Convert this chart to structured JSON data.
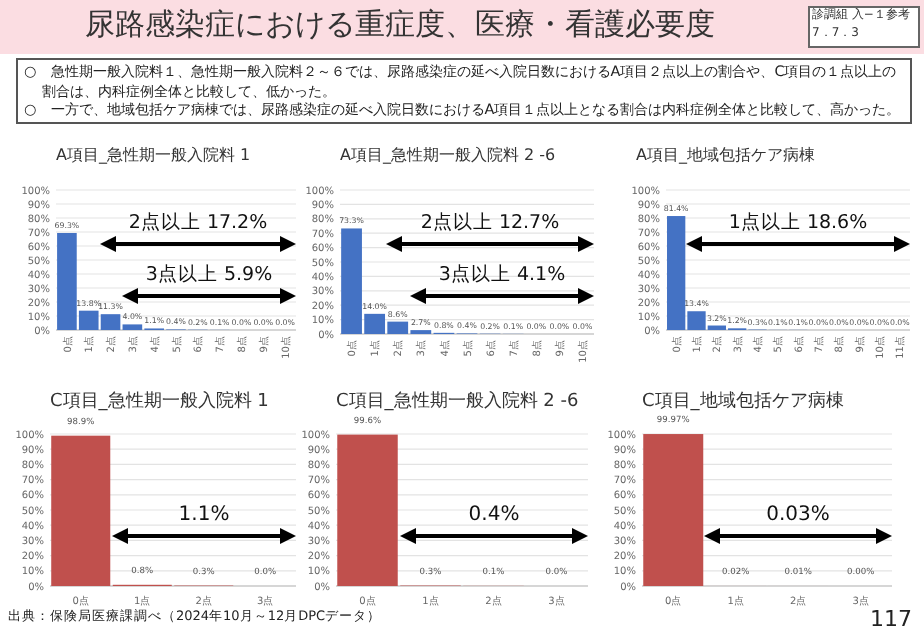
{
  "chart_data": [
    {
      "type": "other",
      "title": "尿路感染症における重症度、医療・看護必要度",
      "annotations": [
        "○　急性期一般入院料１、急性期一般入院料２～６では、尿路感染症の延べ入院日数におけるA項目２点以上の割合や、C項目の１点以上の割合は、内科症例全体と比較して、低かった。",
        "○　一方で、地域包括ケア病棟では、尿路感染症の延べ入院日数におけるA項目１点以上となる割合は内科症例全体と比較して、高かった。",
        "診調組 入−１参考 7．7．3",
        "出典：保険局医療課調べ（2024年10月～12月DPCデータ）",
        "117"
      ]
    },
    {
      "type": "bar",
      "title": "A項目_急性期一般入院料 1",
      "categories": [
        "0点",
        "1点",
        "2点",
        "3点",
        "4点",
        "5点",
        "6点",
        "7点",
        "8点",
        "9点",
        "10点"
      ],
      "values": [
        69.3,
        13.8,
        11.3,
        4.0,
        1.1,
        0.4,
        0.2,
        0.1,
        0.0,
        0.0,
        0.0
      ],
      "color": "#4472c4",
      "value_labels": [
        "69.3%",
        "13.8%",
        "11.3%",
        "4.0%",
        "1.1%",
        "0.4%",
        "0.2%",
        "0.1%",
        "0.0%",
        "0.0%",
        "0.0%"
      ],
      "ylim": [
        0,
        100
      ],
      "yticks": [
        {
          "value": 0,
          "label": "0%"
        },
        {
          "value": 10,
          "label": "10%"
        },
        {
          "value": 20,
          "label": "20%"
        },
        {
          "value": 30,
          "label": "30%"
        },
        {
          "value": 40,
          "label": "40%"
        },
        {
          "value": 50,
          "label": "50%"
        },
        {
          "value": 60,
          "label": "60%"
        },
        {
          "value": 70,
          "label": "70%"
        },
        {
          "value": 80,
          "label": "80%"
        },
        {
          "value": 90,
          "label": "90%"
        },
        {
          "value": 100,
          "label": "100%"
        }
      ],
      "grid": "y",
      "annotations": [
        "2点以上 17.2%",
        "3点以上 5.9%"
      ]
    },
    {
      "type": "bar",
      "title": "A項目_急性期一般入院料 2 -6",
      "categories": [
        "0点",
        "1点",
        "2点",
        "3点",
        "4点",
        "5点",
        "6点",
        "7点",
        "8点",
        "9点",
        "10点"
      ],
      "values": [
        73.3,
        14.0,
        8.6,
        2.7,
        0.8,
        0.4,
        0.2,
        0.1,
        0.0,
        0.0,
        0.0
      ],
      "color": "#4472c4",
      "value_labels": [
        "73.3%",
        "14.0%",
        "8.6%",
        "2.7%",
        "0.8%",
        "0.4%",
        "0.2%",
        "0.1%",
        "0.0%",
        "0.0%",
        "0.0%"
      ],
      "ylim": [
        0,
        100
      ],
      "yticks": [
        {
          "value": 0,
          "label": "0%"
        },
        {
          "value": 10,
          "label": "10%"
        },
        {
          "value": 20,
          "label": "20%"
        },
        {
          "value": 30,
          "label": "30%"
        },
        {
          "value": 40,
          "label": "40%"
        },
        {
          "value": 50,
          "label": "50%"
        },
        {
          "value": 60,
          "label": "60%"
        },
        {
          "value": 70,
          "label": "70%"
        },
        {
          "value": 80,
          "label": "80%"
        },
        {
          "value": 90,
          "label": "90%"
        },
        {
          "value": 100,
          "label": "100%"
        }
      ],
      "grid": "y",
      "annotations": [
        "2点以上 12.7%",
        "3点以上 4.1%"
      ]
    },
    {
      "type": "bar",
      "title": "A項目_地域包括ケア病棟",
      "categories": [
        "0点",
        "1点",
        "2点",
        "3点",
        "4点",
        "5点",
        "6点",
        "7点",
        "8点",
        "9点",
        "10点",
        "11点"
      ],
      "values": [
        81.4,
        13.4,
        3.2,
        1.2,
        0.3,
        0.1,
        0.1,
        0.0,
        0.0,
        0.0,
        0.0,
        0.0
      ],
      "color": "#4472c4",
      "value_labels": [
        "81.4%",
        "13.4%",
        "3.2%",
        "1.2%",
        "0.3%",
        "0.1%",
        "0.1%",
        "0.0%",
        "0.0%",
        "0.0%",
        "0.0%",
        "0.0%"
      ],
      "ylim": [
        0,
        100
      ],
      "yticks": [
        {
          "value": 0,
          "label": "0%"
        },
        {
          "value": 10,
          "label": "10%"
        },
        {
          "value": 20,
          "label": "20%"
        },
        {
          "value": 30,
          "label": "30%"
        },
        {
          "value": 40,
          "label": "40%"
        },
        {
          "value": 50,
          "label": "50%"
        },
        {
          "value": 60,
          "label": "60%"
        },
        {
          "value": 70,
          "label": "70%"
        },
        {
          "value": 80,
          "label": "80%"
        },
        {
          "value": 90,
          "label": "90%"
        },
        {
          "value": 100,
          "label": "100%"
        }
      ],
      "grid": "y",
      "annotations": [
        "1点以上 18.6%"
      ]
    },
    {
      "type": "bar",
      "title": "C項目_急性期一般入院料 1",
      "categories": [
        "0点",
        "1点",
        "2点",
        "3点"
      ],
      "values": [
        98.9,
        0.8,
        0.3,
        0.0
      ],
      "color": "#c0504d",
      "value_labels": [
        "98.9%",
        "0.8%",
        "0.3%",
        "0.0%"
      ],
      "ylim": [
        0,
        100
      ],
      "yticks": [
        {
          "value": 0,
          "label": "0%"
        },
        {
          "value": 10,
          "label": "10%"
        },
        {
          "value": 20,
          "label": "20%"
        },
        {
          "value": 30,
          "label": "30%"
        },
        {
          "value": 40,
          "label": "40%"
        },
        {
          "value": 50,
          "label": "50%"
        },
        {
          "value": 60,
          "label": "60%"
        },
        {
          "value": 70,
          "label": "70%"
        },
        {
          "value": 80,
          "label": "80%"
        },
        {
          "value": 90,
          "label": "90%"
        },
        {
          "value": 100,
          "label": "100%"
        }
      ],
      "grid": "y",
      "annotations": [
        "1.1%"
      ]
    },
    {
      "type": "bar",
      "title": "C項目_急性期一般入院料 2 -6",
      "categories": [
        "0点",
        "1点",
        "2点",
        "3点"
      ],
      "values": [
        99.6,
        0.3,
        0.1,
        0.0
      ],
      "color": "#c0504d",
      "value_labels": [
        "99.6%",
        "0.3%",
        "0.1%",
        "0.0%"
      ],
      "ylim": [
        0,
        100
      ],
      "yticks": [
        {
          "value": 0,
          "label": "0%"
        },
        {
          "value": 10,
          "label": "10%"
        },
        {
          "value": 20,
          "label": "20%"
        },
        {
          "value": 30,
          "label": "30%"
        },
        {
          "value": 40,
          "label": "40%"
        },
        {
          "value": 50,
          "label": "50%"
        },
        {
          "value": 60,
          "label": "60%"
        },
        {
          "value": 70,
          "label": "70%"
        },
        {
          "value": 80,
          "label": "80%"
        },
        {
          "value": 90,
          "label": "90%"
        },
        {
          "value": 100,
          "label": "100%"
        }
      ],
      "grid": "y",
      "annotations": [
        "0.4%"
      ]
    },
    {
      "type": "bar",
      "title": "C項目_地域包括ケア病棟",
      "categories": [
        "0点",
        "1点",
        "2点",
        "3点"
      ],
      "values": [
        99.97,
        0.02,
        0.01,
        0.0
      ],
      "color": "#c0504d",
      "value_labels": [
        "99.97%",
        "0.02%",
        "0.01%",
        "0.00%"
      ],
      "ylim": [
        0,
        100
      ],
      "yticks": [
        {
          "value": 0,
          "label": "0%"
        },
        {
          "value": 10,
          "label": "10%"
        },
        {
          "value": 20,
          "label": "20%"
        },
        {
          "value": 30,
          "label": "30%"
        },
        {
          "value": 40,
          "label": "40%"
        },
        {
          "value": 50,
          "label": "50%"
        },
        {
          "value": 60,
          "label": "60%"
        },
        {
          "value": 70,
          "label": "70%"
        },
        {
          "value": 80,
          "label": "80%"
        },
        {
          "value": 90,
          "label": "90%"
        },
        {
          "value": 100,
          "label": "100%"
        }
      ],
      "grid": "y",
      "annotations": [
        "0.03%"
      ]
    }
  ]
}
